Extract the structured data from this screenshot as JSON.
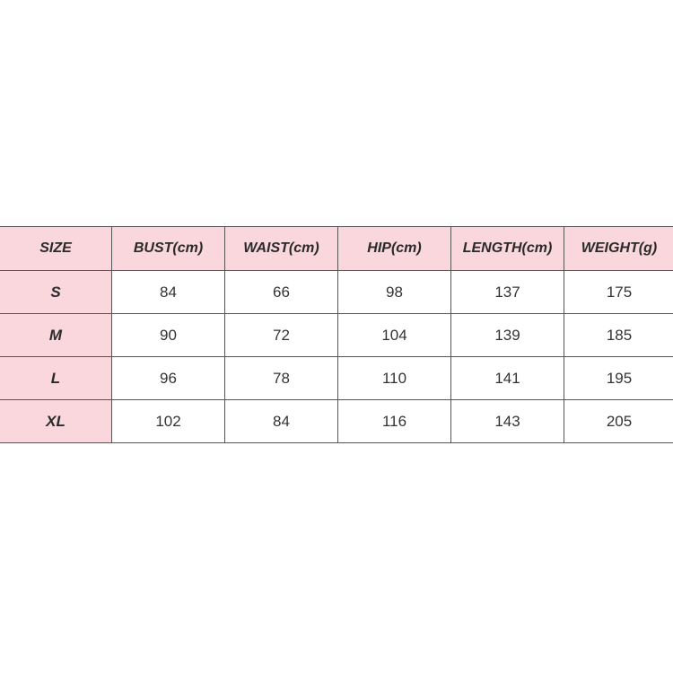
{
  "colors": {
    "header_bg": "#f9d7dd",
    "border": "#555555"
  },
  "table": {
    "headers": [
      "SIZE",
      "BUST(cm)",
      "WAIST(cm)",
      "HIP(cm)",
      "LENGTH(cm)",
      "WEIGHT(g)"
    ],
    "rows": [
      [
        "S",
        "84",
        "66",
        "98",
        "137",
        "175"
      ],
      [
        "M",
        "90",
        "72",
        "104",
        "139",
        "185"
      ],
      [
        "L",
        "96",
        "78",
        "110",
        "141",
        "195"
      ],
      [
        "XL",
        "102",
        "84",
        "116",
        "143",
        "205"
      ]
    ]
  }
}
